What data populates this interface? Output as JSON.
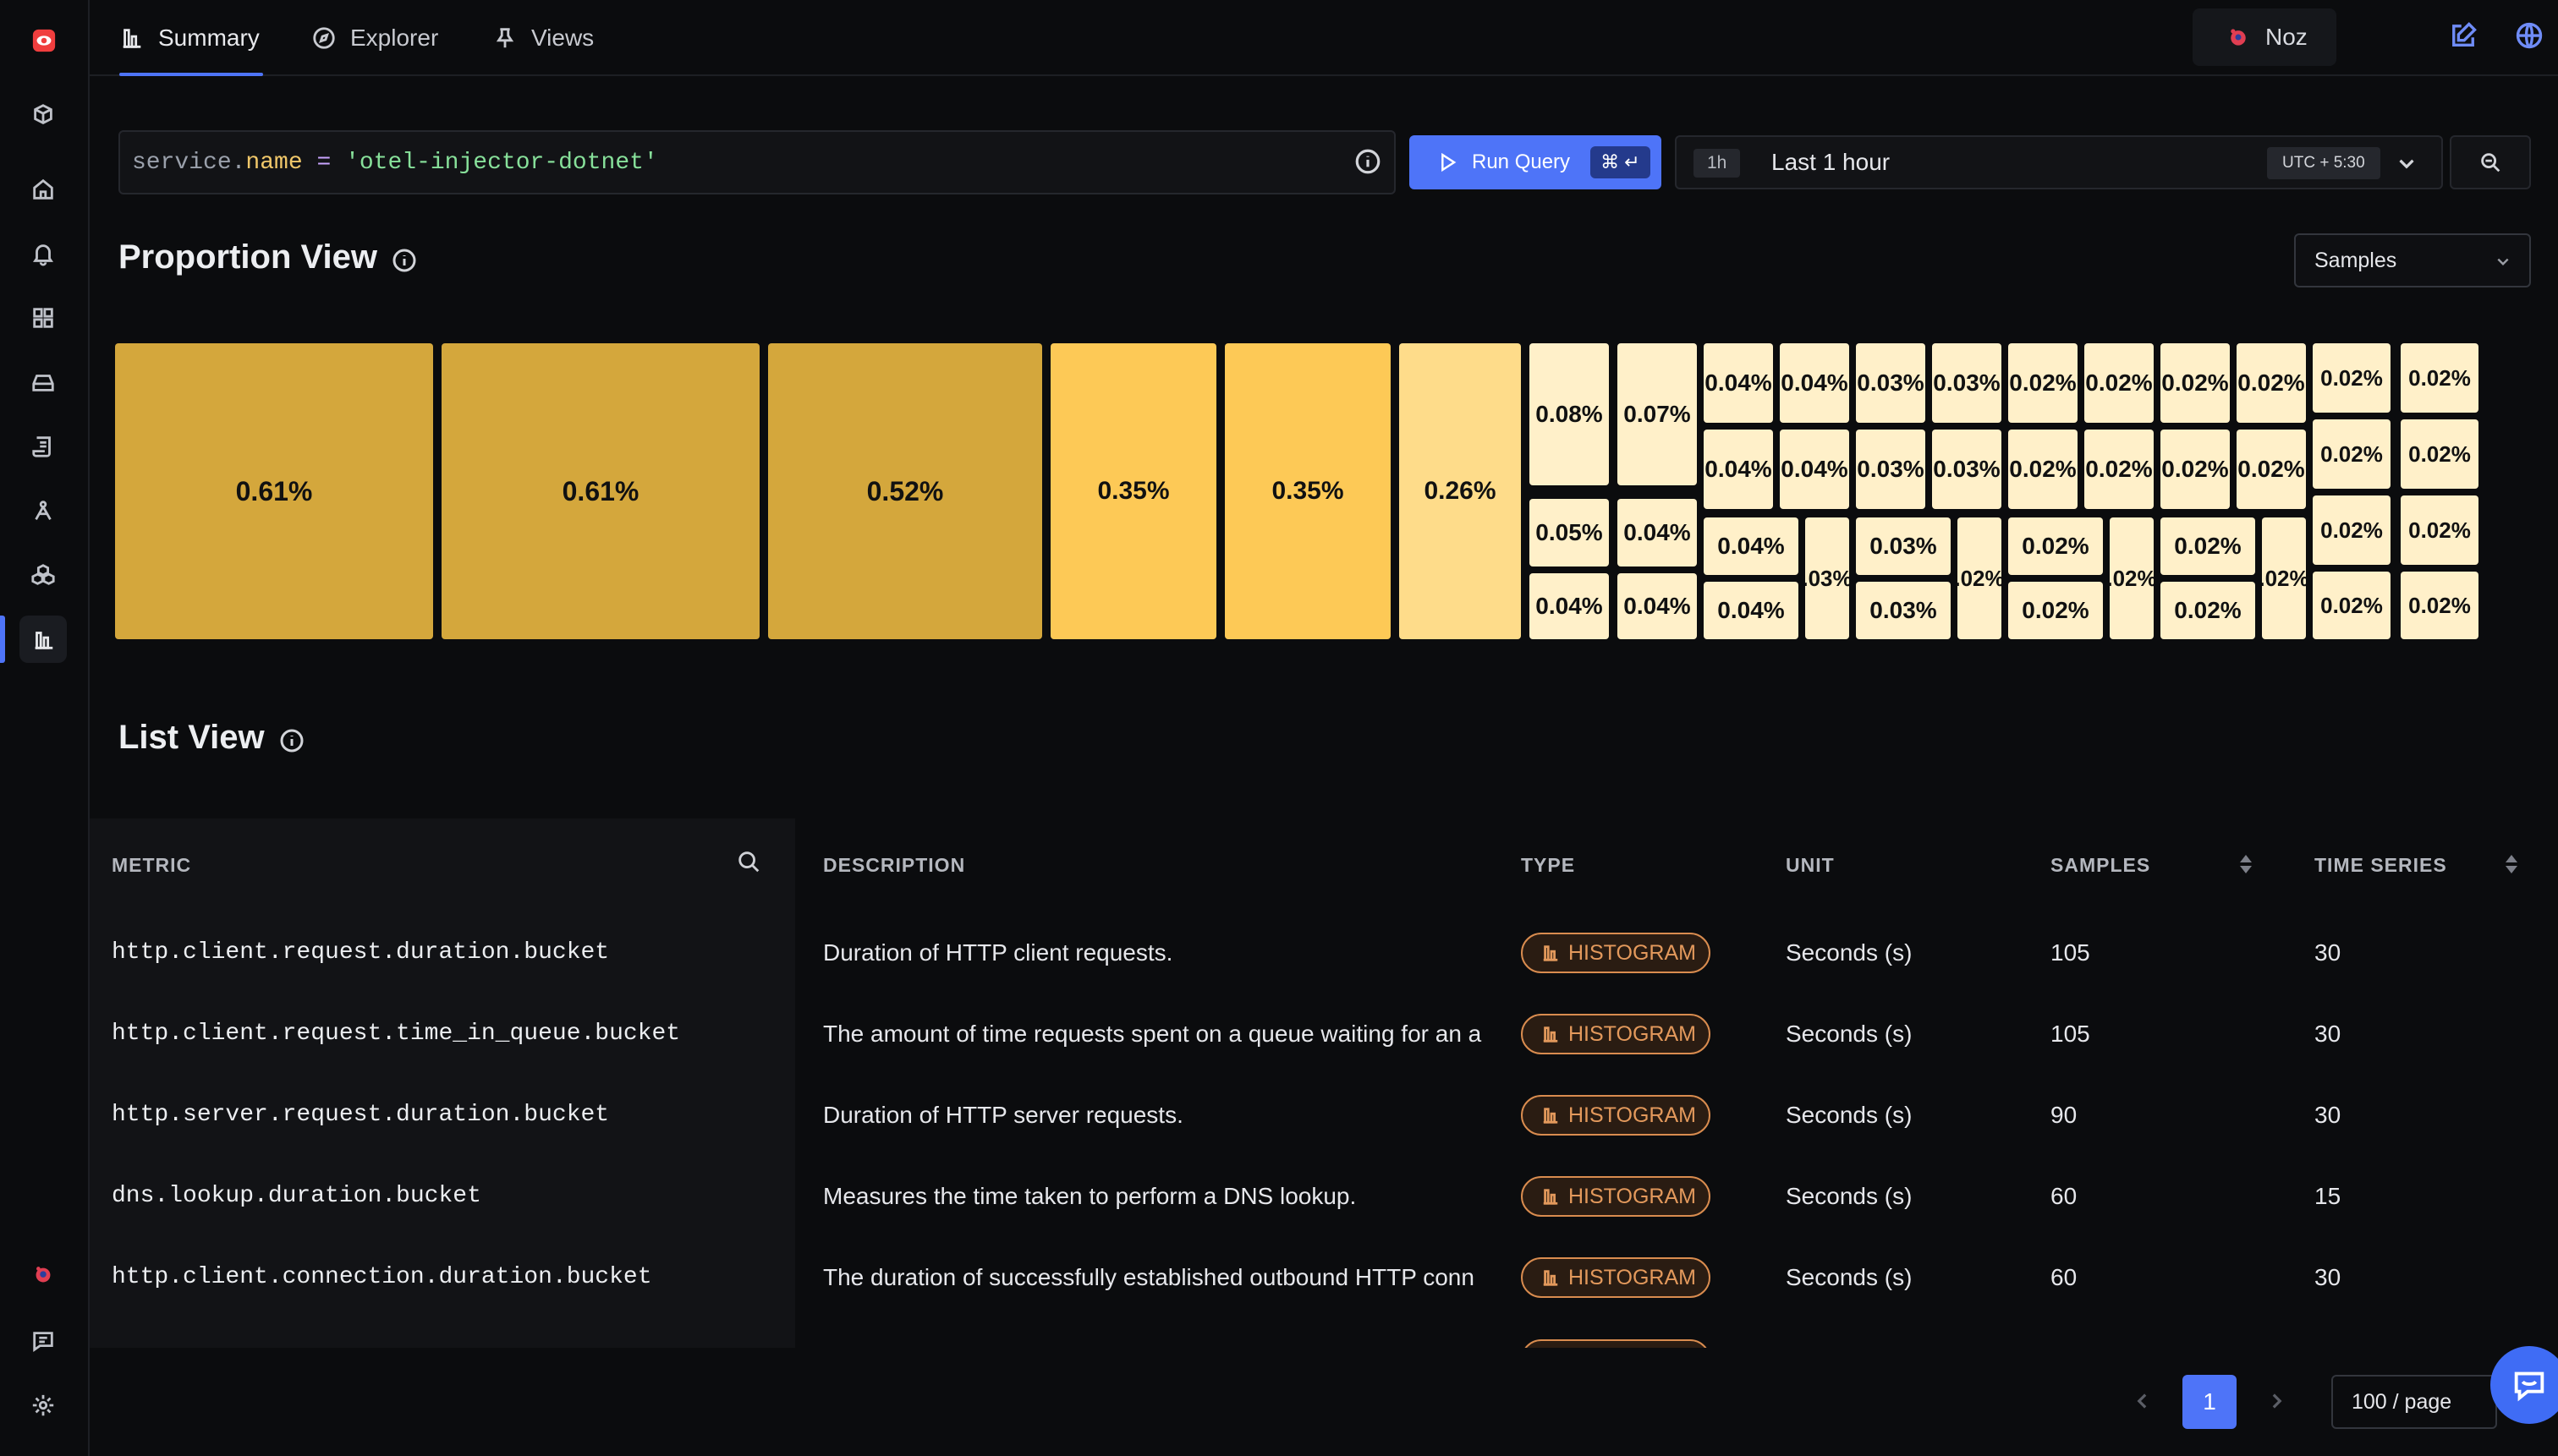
{
  "topbar": {
    "tabs": [
      {
        "label": "Summary",
        "icon": "bar-chart-icon"
      },
      {
        "label": "Explorer",
        "icon": "compass-icon"
      },
      {
        "label": "Views",
        "icon": "pin-icon"
      }
    ],
    "user": "Noz"
  },
  "query": {
    "key": "service.",
    "attr": "name",
    "op": " = ",
    "value": "'otel-injector-dotnet'"
  },
  "run": {
    "label": "Run Query",
    "shortcut": "⌘ ↵"
  },
  "time": {
    "badge": "1h",
    "label": "Last 1 hour",
    "timezone": "UTC + 5:30"
  },
  "proportion": {
    "title": "Proportion View",
    "select_value": "Samples",
    "tiles": [
      "0.61%",
      "0.61%",
      "0.52%",
      "0.35%",
      "0.35%",
      "0.26%",
      "0.08%",
      "0.07%",
      "0.05%",
      "0.04%",
      "0.04%",
      "0.04%",
      "0.04%",
      "0.04%",
      "0.03%",
      "0.03%",
      "0.02%",
      "0.02%",
      "0.02%",
      "0.02%",
      "0.04%",
      "0.04%",
      "0.03%",
      "0.03%",
      "0.02%",
      "0.02%",
      "0.02%",
      "0.02%",
      "0.04%",
      ".03%",
      "0.03%",
      ".02%",
      "0.02%",
      ".02%",
      "0.02%",
      ".02%",
      "0.04%",
      "0.03%",
      "0.02%",
      "0.02%",
      "0.02%",
      "0.02%",
      "0.02%",
      "0.02%",
      "0.02%",
      "0.02%",
      "0.02%",
      "0.02%"
    ]
  },
  "list": {
    "title": "List View",
    "columns": {
      "metric": "METRIC",
      "description": "DESCRIPTION",
      "type": "TYPE",
      "unit": "UNIT",
      "samples": "SAMPLES",
      "time_series": "TIME SERIES"
    },
    "rows": [
      {
        "metric": "http.client.request.duration.bucket",
        "description": "Duration of HTTP client requests.",
        "type": "HISTOGRAM",
        "unit": "Seconds (s)",
        "samples": "105",
        "time_series": "30"
      },
      {
        "metric": "http.client.request.time_in_queue.bucket",
        "description": "The amount of time requests spent on a queue waiting for an a",
        "type": "HISTOGRAM",
        "unit": "Seconds (s)",
        "samples": "105",
        "time_series": "30"
      },
      {
        "metric": "http.server.request.duration.bucket",
        "description": "Duration of HTTP server requests.",
        "type": "HISTOGRAM",
        "unit": "Seconds (s)",
        "samples": "90",
        "time_series": "30"
      },
      {
        "metric": "dns.lookup.duration.bucket",
        "description": "Measures the time taken to perform a DNS lookup.",
        "type": "HISTOGRAM",
        "unit": "Seconds (s)",
        "samples": "60",
        "time_series": "15"
      },
      {
        "metric": "http.client.connection.duration.bucket",
        "description": "The duration of successfully established outbound HTTP conn",
        "type": "HISTOGRAM",
        "unit": "Seconds (s)",
        "samples": "60",
        "time_series": "30"
      }
    ]
  },
  "pagination": {
    "current": "1",
    "page_size": "100 / page"
  },
  "colors": {
    "accent": "#4e74f8",
    "histogram": "#e3995c",
    "tile_dark": "#d4a73c",
    "tile_mid": "#fdc956",
    "tile_light": "#fedc8a",
    "tile_lightest": "#fff0c9"
  }
}
